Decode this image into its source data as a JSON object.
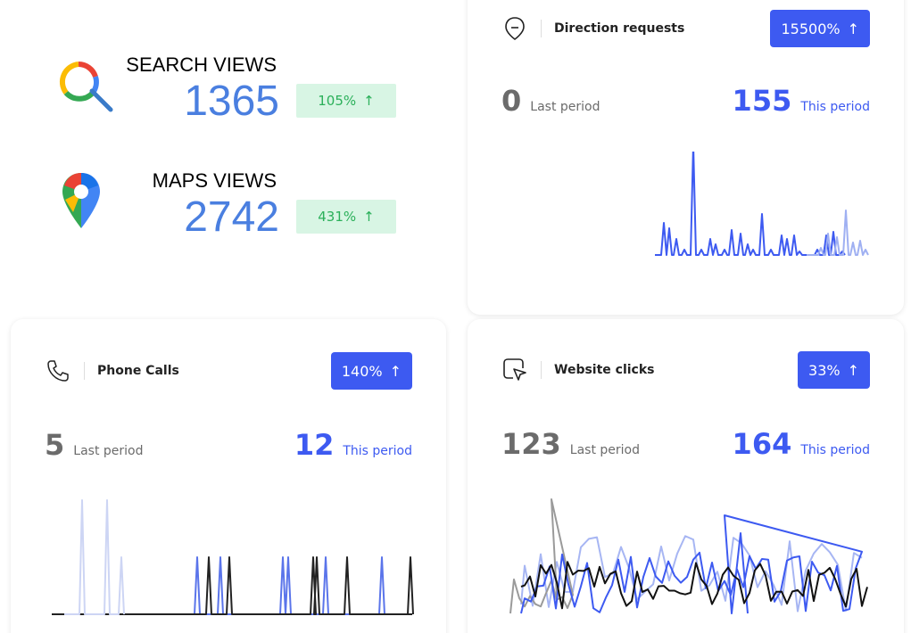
{
  "search_views": {
    "title": "SEARCH VIEWS",
    "value": "1365",
    "change": "105%",
    "change_arrow": "↑",
    "icon": "google-search-icon"
  },
  "maps_views": {
    "title": "MAPS VIEWS",
    "value": "2742",
    "change": "431%",
    "change_arrow": "↑",
    "icon": "google-maps-pin-icon"
  },
  "direction_requests": {
    "title": "Direction requests",
    "icon": "map-direction-icon",
    "change": "15500%",
    "change_arrow": "↑",
    "last_value": "0",
    "last_label": "Last period",
    "this_value": "155",
    "this_label": "This period"
  },
  "phone_calls": {
    "title": "Phone Calls",
    "icon": "phone-icon",
    "change": "140%",
    "change_arrow": "↑",
    "last_value": "5",
    "last_label": "Last period",
    "this_value": "12",
    "this_label": "This period"
  },
  "website_clicks": {
    "title": "Website clicks",
    "icon": "cursor-click-icon",
    "change": "33%",
    "change_arrow": "↑",
    "last_value": "123",
    "last_label": "Last period",
    "this_value": "164",
    "this_label": "This period"
  },
  "colors": {
    "accent": "#3d5af1",
    "summary_number": "#4a7fe0",
    "green_badge_bg": "#d8f5e4",
    "green_badge_text": "#2bb05a",
    "muted": "#6b6b6b"
  }
}
